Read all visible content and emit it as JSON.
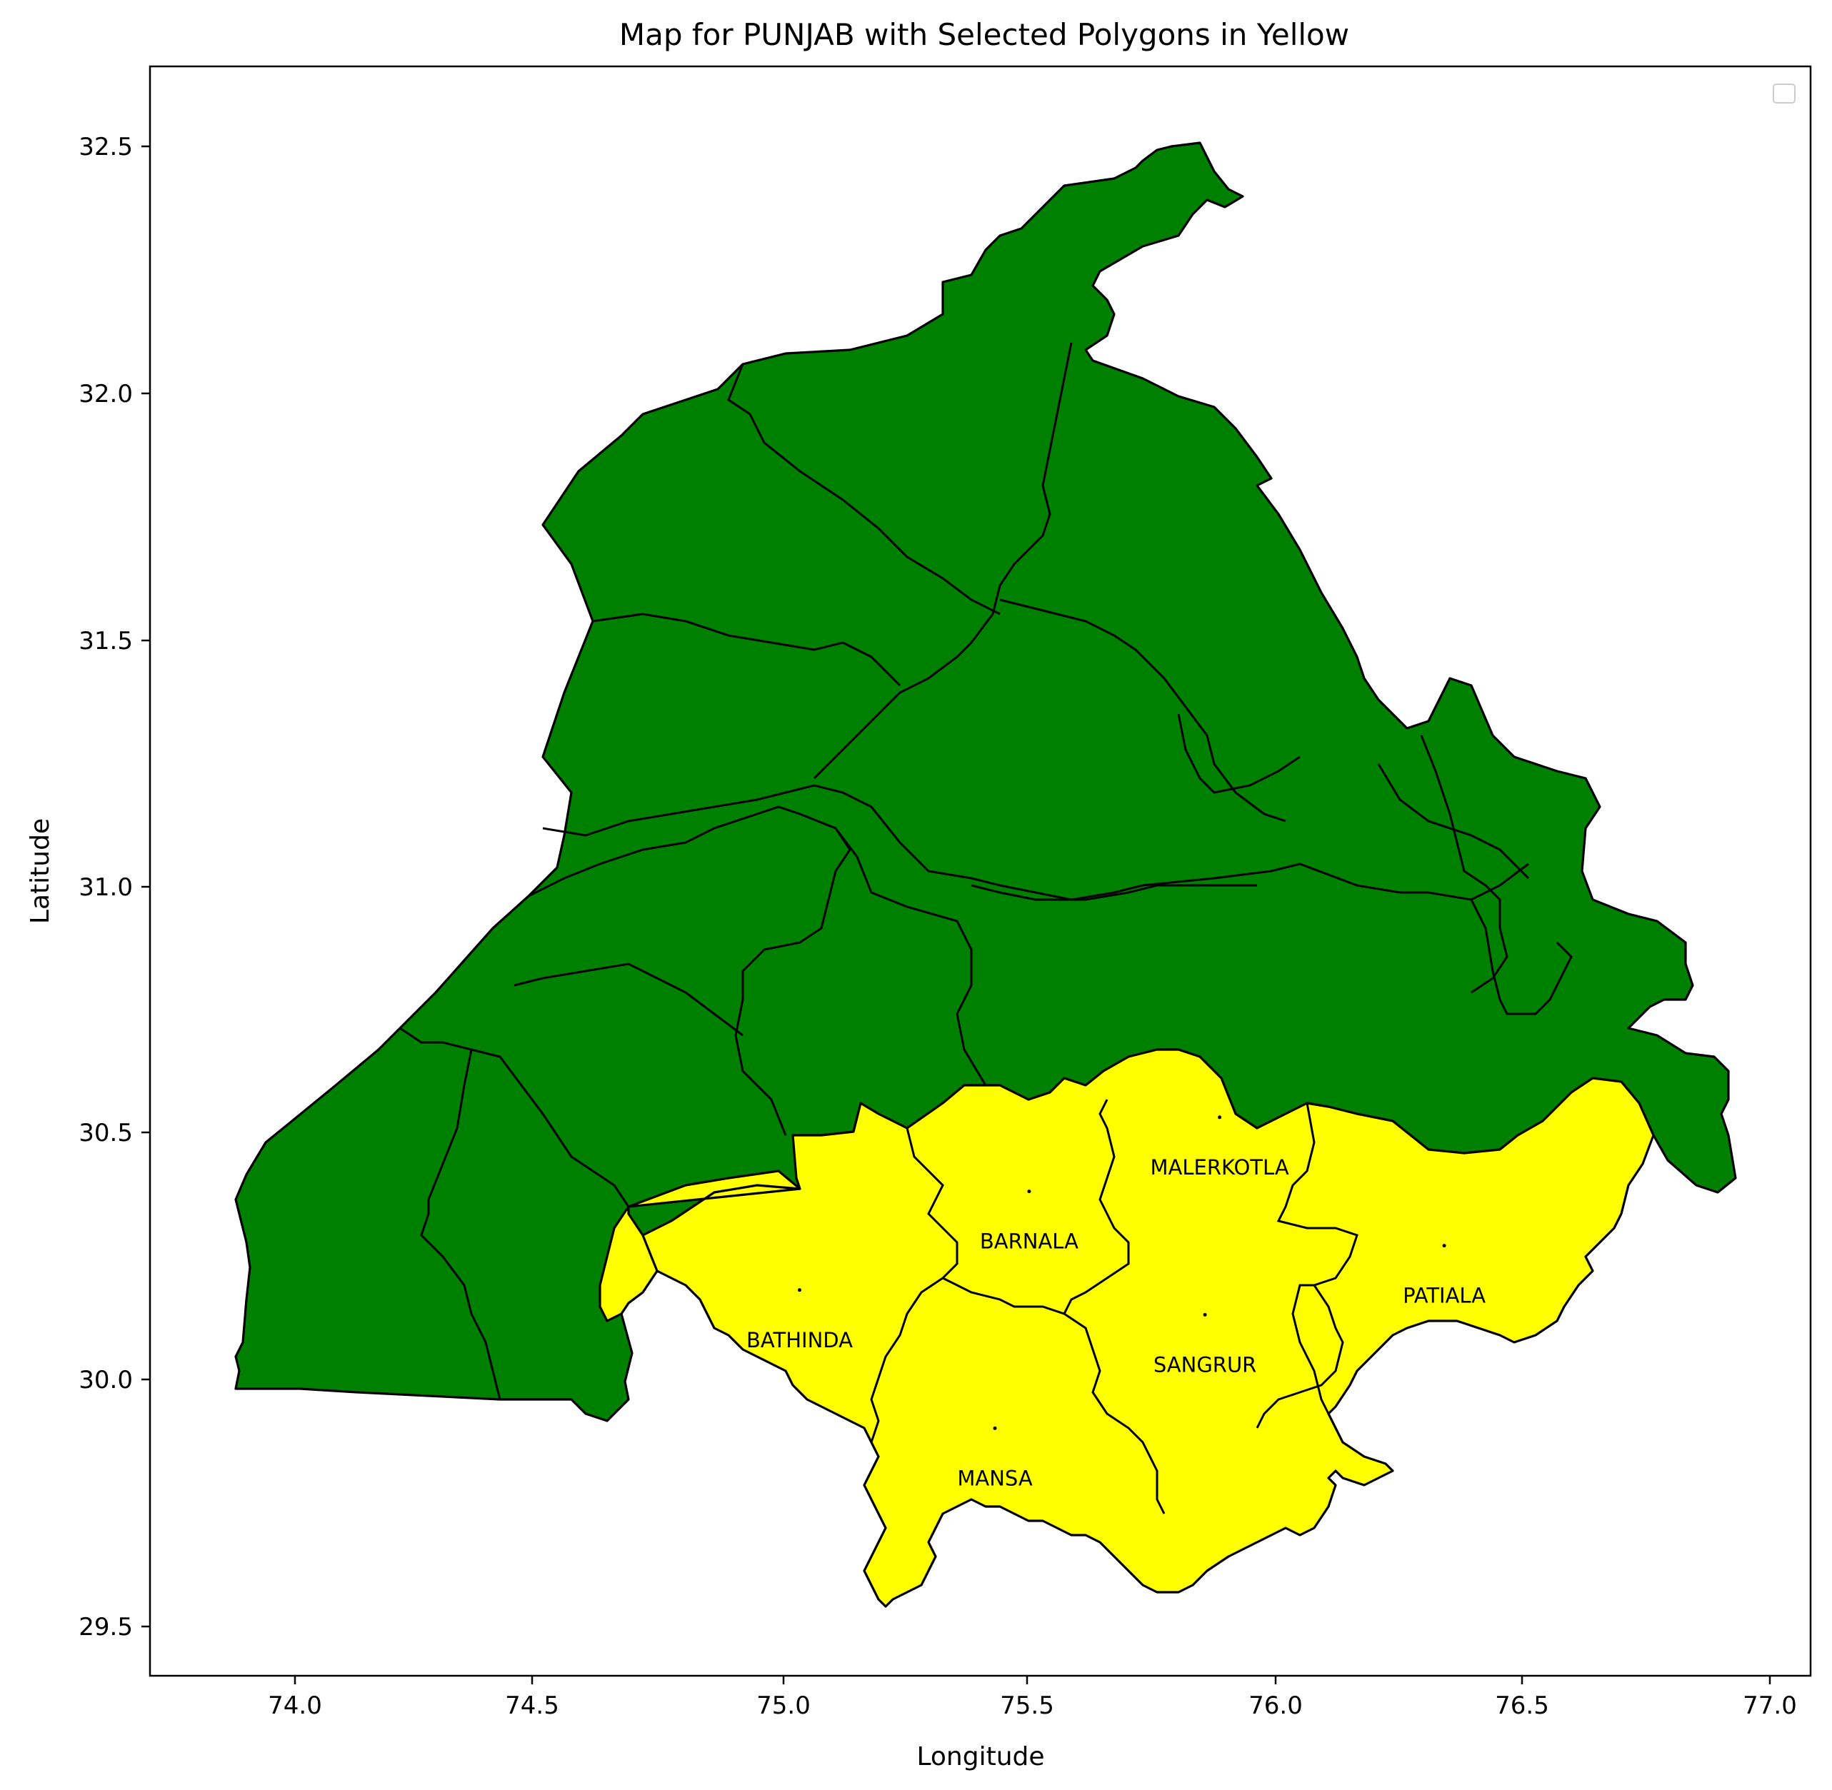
{
  "title": "Map for PUNJAB with Selected Polygons in Yellow",
  "xlabel": "Longitude",
  "ylabel": "Latitude",
  "x_ticks": [
    "74.0",
    "74.5",
    "75.0",
    "75.5",
    "76.0",
    "76.5",
    "77.0"
  ],
  "y_ticks": [
    "32.5",
    "32.0",
    "31.5",
    "31.0",
    "30.5",
    "30.0",
    "29.5"
  ],
  "colors": {
    "selected": "#ffff00",
    "unselected": "#008000",
    "border": "#000000"
  },
  "legend": {
    "placement": "top-right",
    "entries": []
  },
  "map_data": {
    "state": "PUNJAB",
    "xlim": [
      73.7,
      77.1
    ],
    "ylim": [
      29.4,
      32.66
    ],
    "selected_districts": [
      {
        "name": "MALERKOTLA",
        "label_lon": 75.89,
        "label_lat": 30.43
      },
      {
        "name": "BARNALA",
        "label_lon": 75.5,
        "label_lat": 30.28
      },
      {
        "name": "PATIALA",
        "label_lon": 76.35,
        "label_lat": 30.17
      },
      {
        "name": "BATHINDA",
        "label_lon": 75.03,
        "label_lat": 30.08
      },
      {
        "name": "SANGRUR",
        "label_lon": 75.86,
        "label_lat": 30.03
      },
      {
        "name": "MANSA",
        "label_lon": 75.43,
        "label_lat": 29.8
      }
    ]
  }
}
